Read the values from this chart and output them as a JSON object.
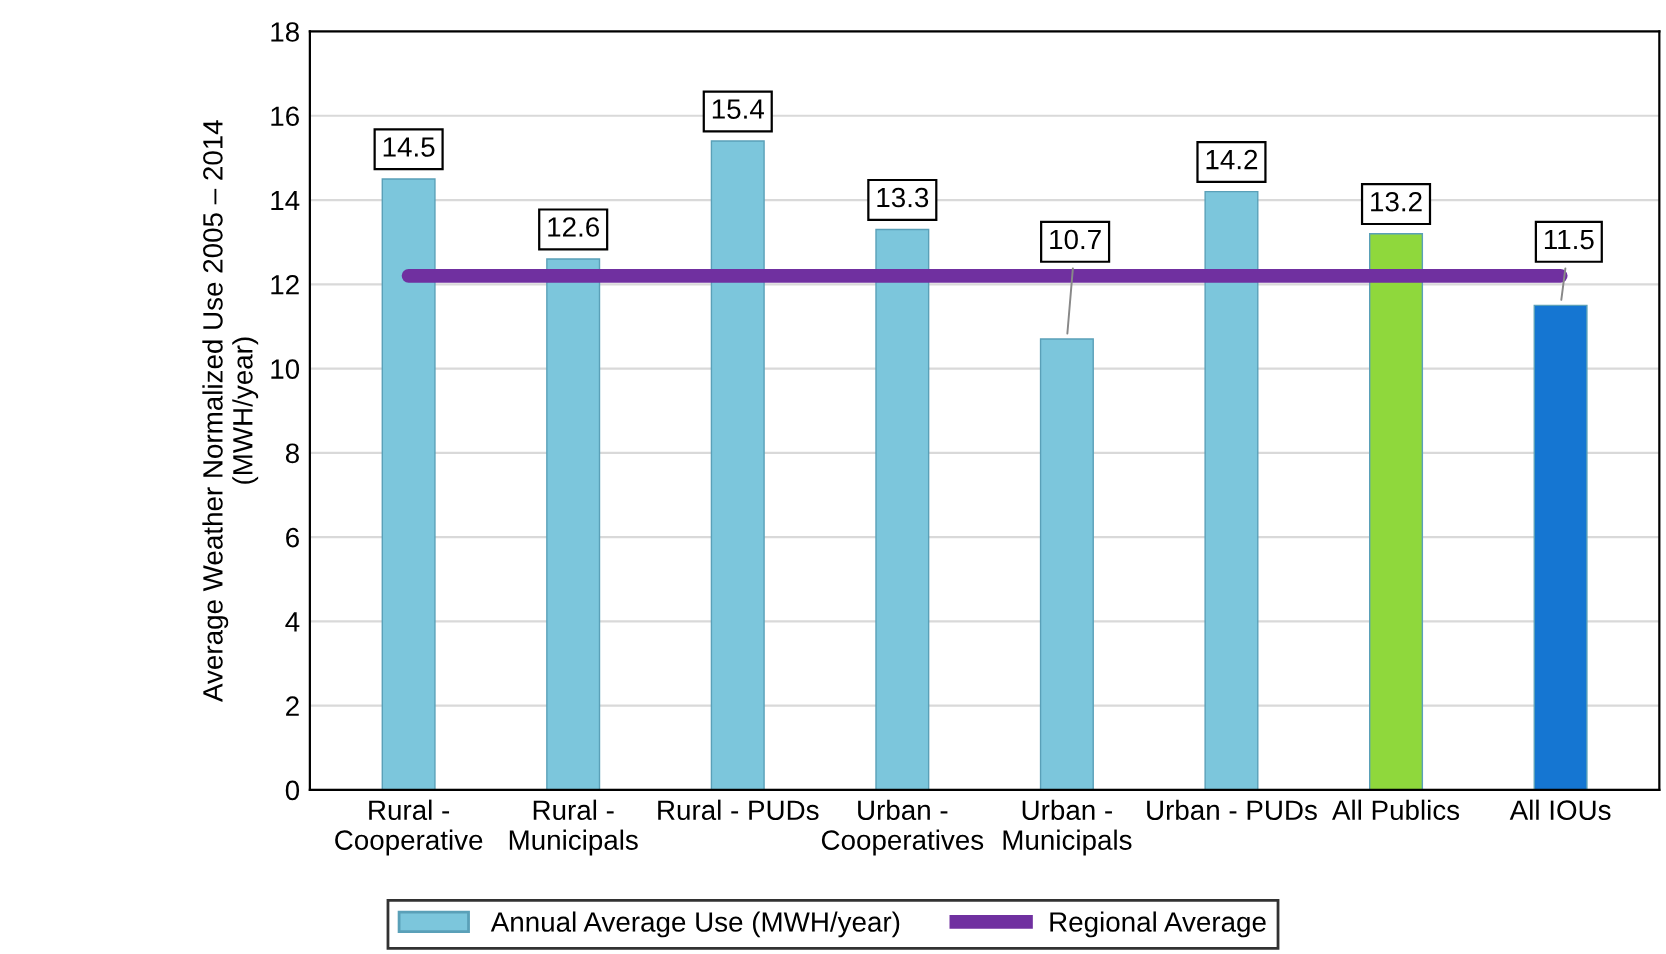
{
  "chart_data": {
    "type": "bar",
    "ylabel": "Average Weather Normalized Use 2005 – 2014\n(MWH/year)",
    "categories": [
      "Rural -\nCooperative",
      "Rural -\nMunicipals",
      "Rural - PUDs",
      "Urban -\nCooperatives",
      "Urban -\nMunicipals",
      "Urban - PUDs",
      "All Publics",
      "All IOUs"
    ],
    "series": [
      {
        "name": "Annual Average Use (MWH/year)",
        "color": "#7cc6dc",
        "colors": [
          "#7cc6dc",
          "#7cc6dc",
          "#7cc6dc",
          "#7cc6dc",
          "#7cc6dc",
          "#7cc6dc",
          "#8fd83c",
          "#1576d2"
        ],
        "values": [
          14.5,
          12.6,
          15.4,
          13.3,
          10.7,
          14.2,
          13.2,
          11.5
        ],
        "value_labels": [
          "14.5",
          "12.6",
          "15.4",
          "13.3",
          "10.7",
          "14.2",
          "13.2",
          "11.5"
        ]
      },
      {
        "name": "Regional Average",
        "type": "line",
        "color": "#7030a0",
        "values": [
          12.2,
          12.2,
          12.2,
          12.2,
          12.2,
          12.2,
          12.2,
          12.2
        ]
      }
    ],
    "ylim": [
      0,
      18
    ],
    "yticks": [
      0,
      2,
      4,
      6,
      8,
      10,
      12,
      14,
      16,
      18
    ],
    "grid": "y",
    "legend": "bottom",
    "marker": "none"
  }
}
